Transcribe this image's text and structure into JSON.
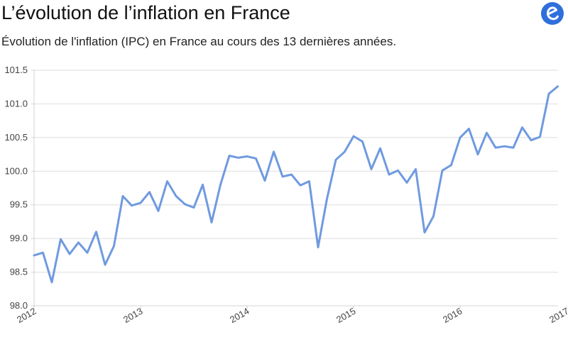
{
  "header": {
    "title": "L’évolution de l’inflation en France",
    "subtitle": "Évolution de l'inflation (IPC) en France au cours des 13 dernières années."
  },
  "logo": {
    "icon": "e-brand-icon",
    "color": "#2f6fdc"
  },
  "chart_data": {
    "type": "line",
    "title": "L’évolution de l’inflation en France",
    "subtitle": "Évolution de l'inflation (IPC) en France au cours des 13 dernières années.",
    "xlabel": "",
    "ylabel": "",
    "ylim": [
      98.0,
      101.5
    ],
    "yticks": [
      "98.0",
      "98.5",
      "99.0",
      "99.5",
      "100.0",
      "100.5",
      "101.0",
      "101.5"
    ],
    "xticks": [
      "2012",
      "2013",
      "2014",
      "2015",
      "2016",
      "2017"
    ],
    "grid": true,
    "legend": "none",
    "series_color": "#6f9ae0",
    "series": [
      {
        "name": "IPC",
        "x_start": 2012.0,
        "step": 0.08333,
        "values": [
          98.75,
          98.79,
          98.35,
          98.99,
          98.77,
          98.94,
          98.79,
          99.1,
          98.61,
          98.89,
          99.63,
          99.49,
          99.53,
          99.69,
          99.41,
          99.85,
          99.63,
          99.51,
          99.46,
          99.8,
          99.24,
          99.8,
          100.23,
          100.2,
          100.22,
          100.19,
          99.86,
          100.29,
          99.92,
          99.95,
          99.79,
          99.85,
          98.87,
          99.59,
          100.17,
          100.29,
          100.52,
          100.44,
          100.03,
          100.34,
          99.95,
          100.01,
          99.83,
          100.03,
          99.09,
          99.33,
          100.01,
          100.09,
          100.5,
          100.63,
          100.25,
          100.57,
          100.35,
          100.37,
          100.35,
          100.65,
          100.46,
          100.51,
          101.15,
          101.26
        ]
      }
    ]
  }
}
